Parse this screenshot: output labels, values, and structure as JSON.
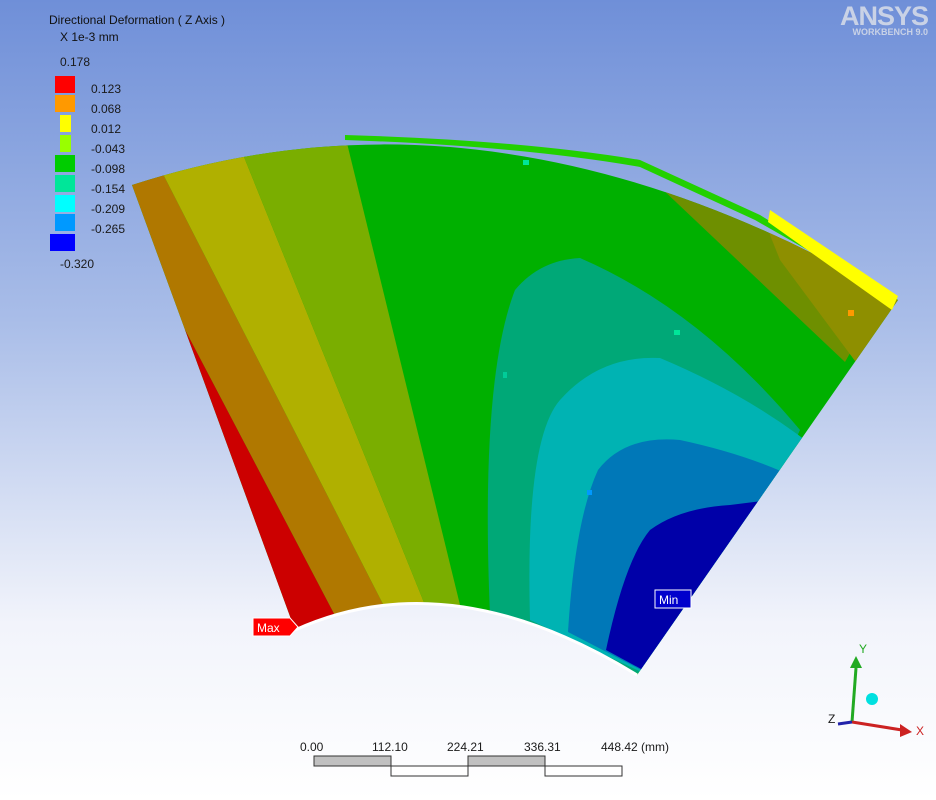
{
  "legend": {
    "title": "Directional Deformation ( Z Axis )",
    "unit": "X 1e-3 mm",
    "levels": [
      "0.178",
      "0.123",
      "0.068",
      "0.012",
      "-0.043",
      "-0.098",
      "-0.154",
      "-0.209",
      "-0.265",
      "-0.320"
    ],
    "colors": [
      "#ff0000",
      "#ff9900",
      "#ffff00",
      "#99ff00",
      "#00cc00",
      "#00e699",
      "#00ffff",
      "#0099ff",
      "#0000ff"
    ]
  },
  "brand": {
    "name": "ANSYS",
    "sub": "WORKBENCH 9.0"
  },
  "probes": {
    "max_label": "Max",
    "min_label": "Min"
  },
  "scale_bar": {
    "ticks": [
      "0.00",
      "112.10",
      "224.21",
      "336.31",
      "448.42 (mm)"
    ]
  },
  "triad": {
    "x_label": "X",
    "y_label": "Y",
    "z_label": "Z"
  }
}
